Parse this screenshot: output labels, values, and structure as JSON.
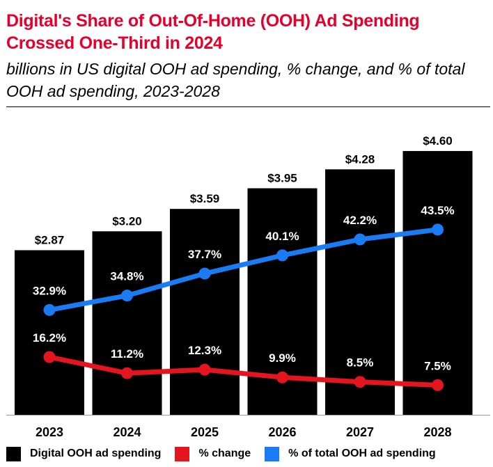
{
  "header": {
    "title": "Digital's Share of Out-Of-Home (OOH) Ad Spending Crossed One-Third in 2024",
    "subtitle": "billions in US digital OOH ad spending, % change, and % of total OOH ad spending, 2023-2028"
  },
  "colors": {
    "title": "#e4002b",
    "bars": "#000000",
    "pct_change": "#e4151f",
    "pct_total": "#1a7cf5"
  },
  "chart_data": {
    "type": "bar",
    "categories": [
      "2023",
      "2024",
      "2025",
      "2026",
      "2027",
      "2028"
    ],
    "series": [
      {
        "name": "Digital OOH ad spending",
        "type": "bar",
        "values": [
          2.87,
          3.2,
          3.59,
          3.95,
          4.28,
          4.6
        ],
        "labels": [
          "$2.87",
          "$3.20",
          "$3.59",
          "$3.95",
          "$4.28",
          "$4.60"
        ],
        "color": "#000000"
      },
      {
        "name": "% change",
        "type": "line",
        "values": [
          16.2,
          11.2,
          12.3,
          9.9,
          8.5,
          7.5
        ],
        "labels": [
          "16.2%",
          "11.2%",
          "12.3%",
          "9.9%",
          "8.5%",
          "7.5%"
        ],
        "color": "#e4151f"
      },
      {
        "name": "% of total OOH ad spending",
        "type": "line",
        "values": [
          32.9,
          34.8,
          37.7,
          40.1,
          42.2,
          43.5
        ],
        "labels": [
          "32.9%",
          "34.8%",
          "37.7%",
          "40.1%",
          "42.2%",
          "43.5%"
        ],
        "color": "#1a7cf5"
      }
    ],
    "xlabel": "",
    "ylabel": "",
    "ylim": [
      0,
      4.6
    ],
    "grid": false,
    "legend_position": "bottom"
  },
  "legend": {
    "items": [
      {
        "label": "Digital OOH ad spending",
        "color": "#000000"
      },
      {
        "label": "% change",
        "color": "#e4151f"
      },
      {
        "label": "% of total OOH ad spending",
        "color": "#1a7cf5"
      }
    ]
  }
}
